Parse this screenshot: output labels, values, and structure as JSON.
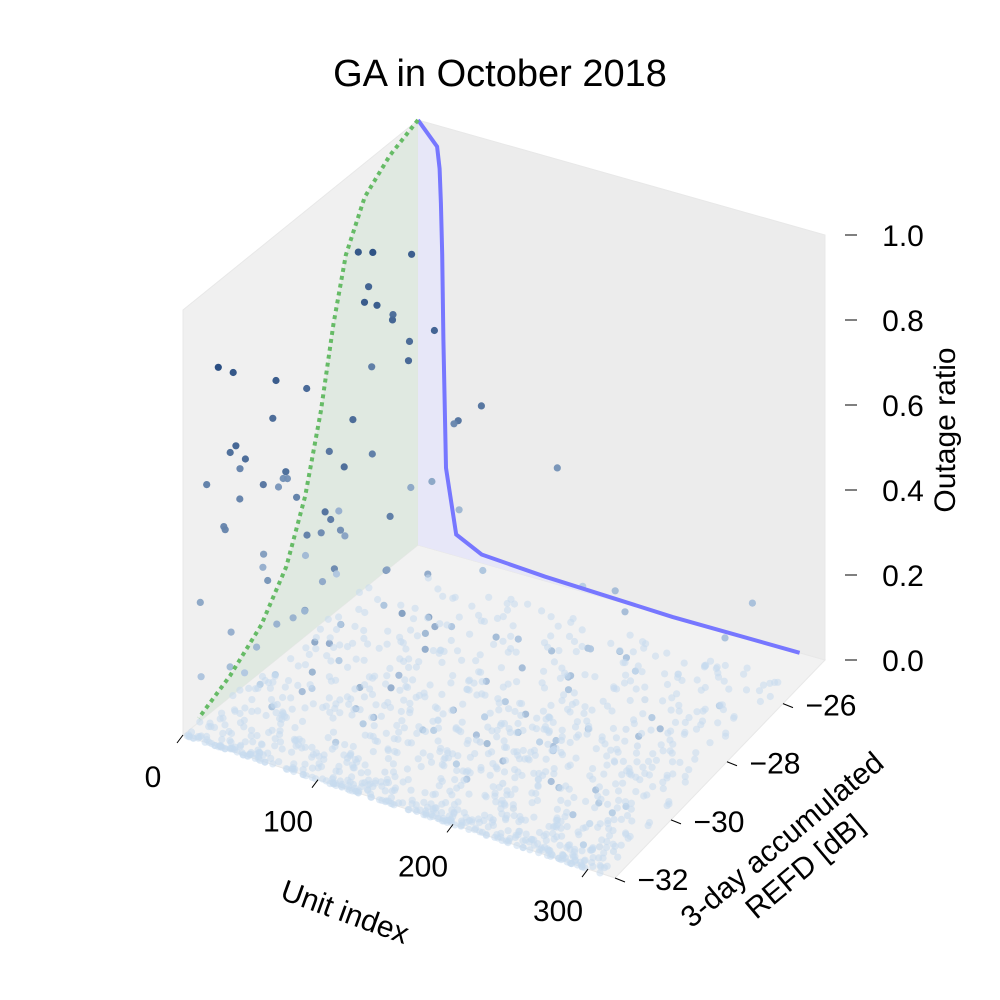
{
  "chart_data": {
    "type": "scatter",
    "title": "GA in October 2018",
    "projection": "3d",
    "xlabel": "Unit index",
    "ylabel": "3-day accumulated\nREFD [dB]",
    "zlabel": "Outage ratio",
    "xlim": [
      0,
      320
    ],
    "ylim": [
      -32,
      -24.5
    ],
    "zlim": [
      0,
      1
    ],
    "x_ticks": [
      "0",
      "100",
      "200",
      "300"
    ],
    "y_ticks": [
      "−32",
      "−30",
      "−28",
      "−26"
    ],
    "z_ticks": [
      "0.0",
      "0.2",
      "0.4",
      "0.6",
      "0.8",
      "1.0"
    ],
    "grid": false,
    "colors": {
      "scatter_low": "#c6dbef",
      "scatter_high": "#08306b",
      "curve_outage_vs_unit": "#7777ff",
      "fill_outage_vs_unit": "#e6e6fa",
      "curve_outage_vs_refd": "#66bb66",
      "fill_outage_vs_refd": "#dde8de"
    },
    "series": [
      {
        "type": "line",
        "plane": "x-z at y = -24.5",
        "x": [
          0,
          15,
          17,
          18,
          19,
          20,
          22,
          30,
          50,
          100,
          200,
          300
        ],
        "z": [
          1.0,
          0.95,
          0.9,
          0.82,
          0.7,
          0.5,
          0.2,
          0.05,
          0.02,
          0.01,
          0.0,
          0.0
        ]
      },
      {
        "type": "line",
        "style": "dotted",
        "plane": "y-z at x = 0",
        "y": [
          -24.5,
          -25.4,
          -26.2,
          -26.8,
          -27.2,
          -27.6,
          -28.1,
          -28.7,
          -29.5,
          -30.5,
          -31.5
        ],
        "z": [
          1.0,
          0.97,
          0.92,
          0.82,
          0.68,
          0.5,
          0.33,
          0.2,
          0.11,
          0.05,
          0.01
        ]
      }
    ],
    "points": {
      "description_of_pattern": "outage ratio high for low unit index; values near 0 spread over all units",
      "count": 1200
    }
  }
}
